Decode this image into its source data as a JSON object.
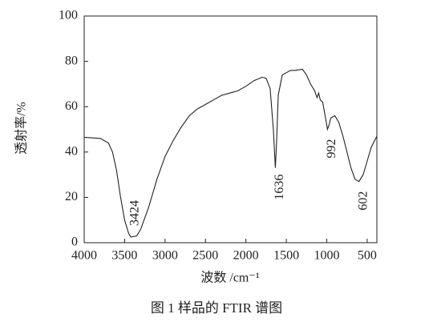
{
  "chart_data": {
    "type": "line",
    "caption": "图 1   样品的 FTIR 谱图",
    "x_label": "波数 /cm⁻¹",
    "y_label": "透射率/%",
    "xlim": [
      4000,
      380
    ],
    "ylim": [
      0,
      100
    ],
    "xticks": [
      4000,
      3500,
      3000,
      2500,
      2000,
      1500,
      1000,
      500
    ],
    "yticks": [
      0,
      20,
      40,
      60,
      80,
      100
    ],
    "series": [
      {
        "name": "FTIR",
        "color": "#222222",
        "x": [
          4000,
          3800,
          3700,
          3650,
          3600,
          3550,
          3500,
          3450,
          3424,
          3350,
          3300,
          3200,
          3100,
          3000,
          2900,
          2800,
          2700,
          2600,
          2500,
          2400,
          2300,
          2200,
          2100,
          2000,
          1900,
          1800,
          1750,
          1700,
          1660,
          1636,
          1620,
          1600,
          1550,
          1500,
          1450,
          1400,
          1300,
          1250,
          1200,
          1150,
          1120,
          1100,
          1080,
          1050,
          1000,
          992,
          970,
          950,
          900,
          850,
          800,
          750,
          700,
          650,
          602,
          550,
          500,
          450,
          380
        ],
        "values": [
          46.5,
          46,
          44,
          40,
          32,
          20,
          10,
          4,
          2.5,
          3,
          6,
          16,
          28,
          38,
          45,
          51,
          56,
          59,
          61,
          63,
          65,
          66,
          67,
          69,
          71.5,
          73,
          72.5,
          68,
          50,
          33,
          45,
          65,
          74,
          75,
          76,
          76,
          76.5,
          74,
          70,
          67,
          64,
          66,
          63,
          62,
          52,
          50,
          52,
          55,
          56,
          53,
          47,
          40,
          33,
          28,
          27,
          30,
          36,
          42,
          47
        ]
      }
    ],
    "annotations": [
      {
        "x": 3424,
        "label": "3424"
      },
      {
        "x": 1636,
        "label": "1636"
      },
      {
        "x": 992,
        "label": "992"
      },
      {
        "x": 602,
        "label": "602"
      }
    ]
  }
}
